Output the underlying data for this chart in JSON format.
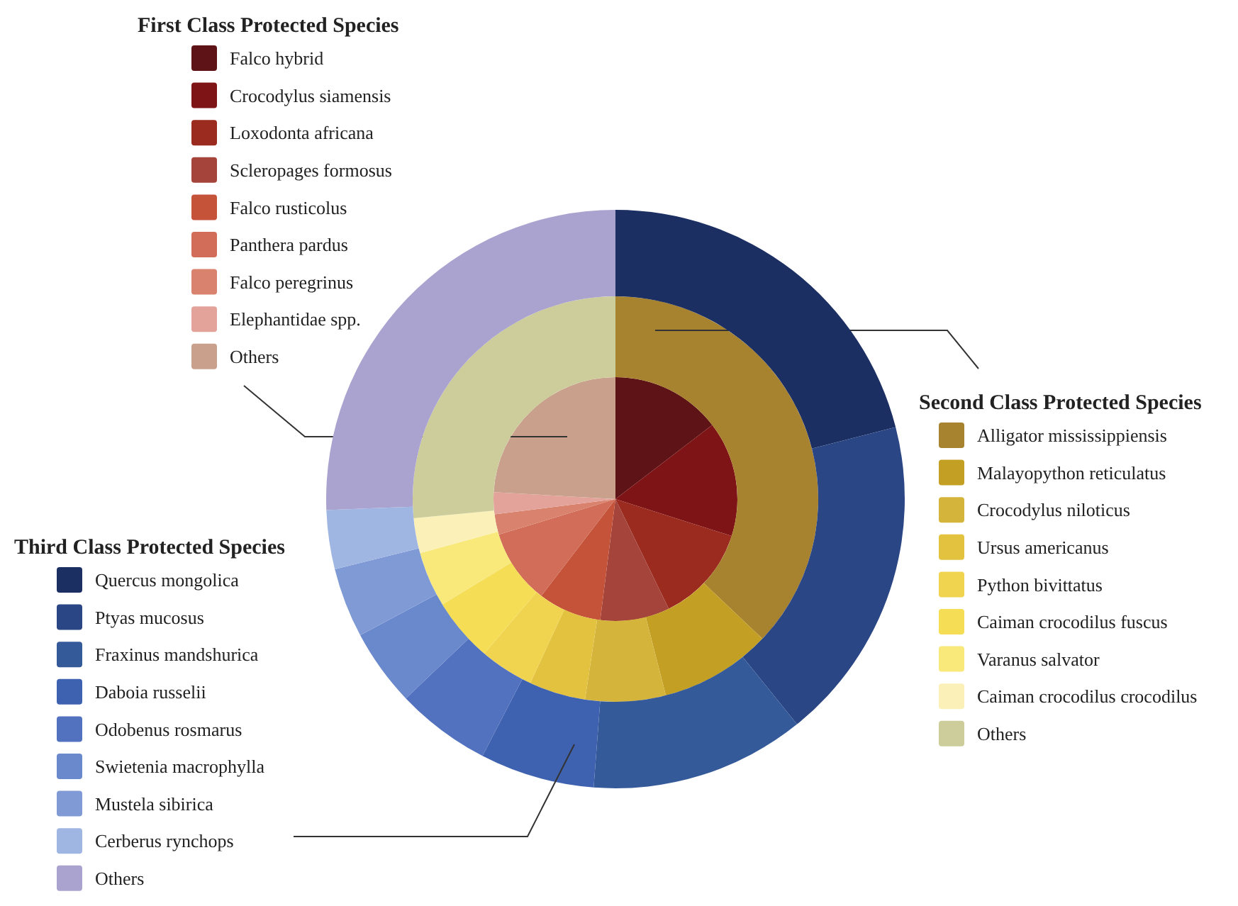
{
  "chart_data": [
    {
      "type": "pie",
      "title": "First Class Protected Species",
      "legend": "top left",
      "categories": [
        "Falco hybrid",
        "Crocodylus siamensis",
        "Loxodonta africana",
        "Scleropages formosus",
        "Falco rusticolus",
        "Panthera pardus",
        "Falco peregrinus",
        "Elephantidae spp.",
        "Others"
      ],
      "values": [
        14.6,
        15.3,
        12.9,
        9.2,
        8.4,
        9.9,
        2.7,
        2.9,
        24.1
      ],
      "colors": [
        "#5e1417",
        "#7f1416",
        "#9b2a1f",
        "#a4443a",
        "#c4533a",
        "#d16d58",
        "#d9826d",
        "#e3a39a",
        "#c9a08c"
      ]
    },
    {
      "type": "donut",
      "title": "Second Class Protected Species",
      "legend": "right",
      "categories": [
        "Alligator mississippiensis",
        "Malayopython reticulatus",
        "Crocodylus niloticus",
        "Ursus americanus",
        "Python bivittatus",
        "Caiman crocodilus fuscus",
        "Varanus salvator",
        "Caiman crocodilus crocodilus",
        "Others"
      ],
      "values": [
        37.1,
        8.9,
        6.4,
        4.5,
        4.3,
        5.1,
        4.4,
        2.8,
        26.5
      ],
      "colors": [
        "#a8832f",
        "#c3a024",
        "#d4b43a",
        "#e3c23f",
        "#f0d34f",
        "#f5de56",
        "#f9e87a",
        "#fbf1b8",
        "#cccd9b"
      ]
    },
    {
      "type": "donut",
      "title": "Third Class Protected Species",
      "legend": "bottom left",
      "categories": [
        "Quercus mongolica",
        "Ptyas mucosus",
        "Fraxinus mandshurica",
        "Daboia russelii",
        "Odobenus rosmarus",
        "Swietenia macrophylla",
        "Mustela sibirica",
        "Cerberus rynchops",
        "Others"
      ],
      "values": [
        21.0,
        18.2,
        12.0,
        6.4,
        5.3,
        4.3,
        3.9,
        3.3,
        25.6
      ],
      "colors": [
        "#1b2f63",
        "#2b4684",
        "#355a9a",
        "#3f62b0",
        "#5272c0",
        "#6a88cc",
        "#7f9ad5",
        "#a0b6e2",
        "#aba3cf"
      ]
    }
  ]
}
